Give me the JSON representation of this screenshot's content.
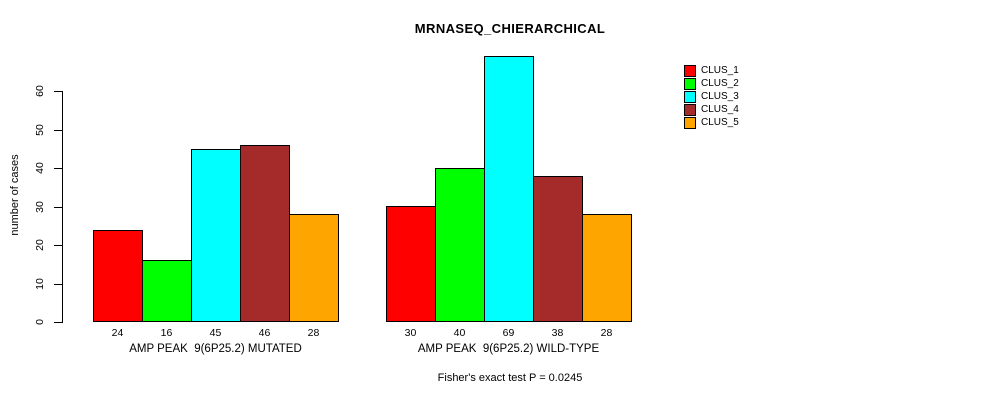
{
  "chart_data": {
    "type": "bar",
    "title": "MRNASEQ_CHIERARCHICAL",
    "ylabel": "number of cases",
    "caption": "Fisher's exact test P = 0.0245",
    "categories": [
      "AMP PEAK  9(6P25.2) MUTATED",
      "AMP PEAK  9(6P25.2) WILD-TYPE"
    ],
    "series": [
      {
        "name": "CLUS_1",
        "color": "#FF0000",
        "values": [
          24,
          30
        ]
      },
      {
        "name": "CLUS_2",
        "color": "#00FF00",
        "values": [
          16,
          40
        ]
      },
      {
        "name": "CLUS_3",
        "color": "#00FFFF",
        "values": [
          45,
          69
        ]
      },
      {
        "name": "CLUS_4",
        "color": "#A52A2A",
        "values": [
          46,
          38
        ]
      },
      {
        "name": "CLUS_5",
        "color": "#FFA500",
        "values": [
          28,
          28
        ]
      }
    ],
    "yticks": [
      0,
      10,
      20,
      30,
      40,
      50,
      60
    ],
    "ylim": [
      0,
      69
    ],
    "grid": false,
    "legend_position": "right",
    "bar_value_labels": true
  }
}
